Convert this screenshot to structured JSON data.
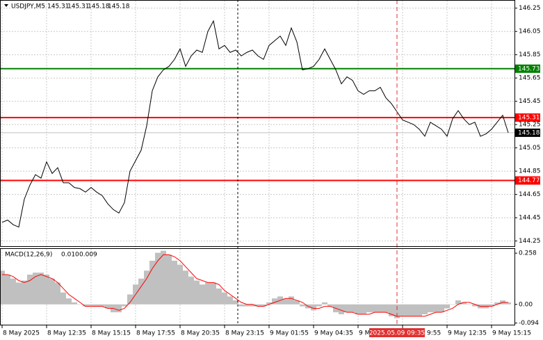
{
  "chart_data": {
    "type": "line",
    "symbol": "USDJPY,M5",
    "ohlc": [
      145.31,
      145.31,
      145.18,
      145.18
    ],
    "color": "#000000",
    "categories": [
      "8 May 2025",
      null,
      null,
      null,
      null,
      null,
      null,
      null,
      "8 May 12:35",
      null,
      null,
      null,
      null,
      null,
      null,
      null,
      "8 May 15:15",
      null,
      null,
      null,
      null,
      null,
      null,
      null,
      "8 May 17:55",
      null,
      null,
      null,
      null,
      null,
      null,
      null,
      "8 May 20:35",
      null,
      null,
      null,
      null,
      null,
      null,
      null,
      "8 May 23:15",
      null,
      null,
      null,
      null,
      null,
      null,
      null,
      "9 May 01:55",
      null,
      null,
      null,
      null,
      null,
      null,
      null,
      "9 May 04:35",
      null,
      null,
      null,
      null,
      null,
      null,
      null,
      "9 M",
      null,
      null,
      null,
      null,
      null,
      null,
      null,
      "9:55",
      null,
      null,
      null,
      null,
      null,
      null,
      null,
      "9 May 12:35",
      null,
      null,
      null,
      null,
      null,
      null,
      null,
      "9 May 15:15",
      null,
      null,
      null
    ],
    "values": [
      144.41,
      144.43,
      144.39,
      144.37,
      144.61,
      144.73,
      144.82,
      144.79,
      144.93,
      144.83,
      144.88,
      144.75,
      144.75,
      144.71,
      144.7,
      144.67,
      144.71,
      144.67,
      144.64,
      144.57,
      144.52,
      144.49,
      144.58,
      144.85,
      144.94,
      145.03,
      145.24,
      145.54,
      145.66,
      145.72,
      145.75,
      145.81,
      145.9,
      145.75,
      145.84,
      145.89,
      145.87,
      146.05,
      146.14,
      145.9,
      145.93,
      145.87,
      145.89,
      145.84,
      145.87,
      145.89,
      145.84,
      145.81,
      145.93,
      145.97,
      146.01,
      145.93,
      146.08,
      145.96,
      145.72,
      145.73,
      145.75,
      145.81,
      145.9,
      145.81,
      145.72,
      145.6,
      145.66,
      145.63,
      145.54,
      145.51,
      145.54,
      145.54,
      145.57,
      145.48,
      145.43,
      145.36,
      145.29,
      145.27,
      145.25,
      145.21,
      145.15,
      145.27,
      145.24,
      145.21,
      145.15,
      145.3,
      145.37,
      145.3,
      145.25,
      145.27,
      145.15,
      145.17,
      145.21,
      145.27,
      145.33,
      145.18
    ],
    "ylim": [
      144.2,
      146.32
    ],
    "yticks": [
      146.25,
      146.05,
      145.85,
      145.65,
      145.45,
      145.25,
      145.05,
      144.85,
      144.65,
      144.45,
      144.25
    ],
    "grid": true,
    "levels": [
      {
        "value": 145.73,
        "color": "#008000"
      },
      {
        "value": 145.31,
        "color": "#ff0000"
      },
      {
        "value": 144.77,
        "color": "#ff0000"
      }
    ],
    "bid": 145.18,
    "cursor_label": "2025.05.09 09:35",
    "macd": {
      "type": "macd",
      "label": "MACD(12,26,9)",
      "label_values": [
        "0.010",
        "0.009"
      ],
      "histogram": {
        "color": "#c0c0c0",
        "values": [
          0.17,
          0.15,
          0.13,
          0.11,
          0.12,
          0.15,
          0.16,
          0.16,
          0.15,
          0.13,
          0.11,
          0.06,
          0.03,
          0.01,
          0,
          -0.01,
          -0.01,
          -0.01,
          -0.01,
          -0.02,
          -0.04,
          -0.04,
          -0.01,
          0.05,
          0.1,
          0.13,
          0.17,
          0.22,
          0.26,
          0.27,
          0.25,
          0.22,
          0.2,
          0.17,
          0.14,
          0.12,
          0.1,
          0.11,
          0.11,
          0.08,
          0.06,
          0.04,
          0.02,
          -0.01,
          -0.01,
          -0.01,
          -0.01,
          -0.01,
          0.01,
          0.03,
          0.04,
          0.03,
          0.04,
          0.02,
          -0.01,
          -0.02,
          -0.03,
          -0.01,
          0.01,
          -0.01,
          -0.04,
          -0.05,
          -0.04,
          -0.04,
          -0.05,
          -0.05,
          -0.04,
          -0.04,
          -0.04,
          -0.04,
          -0.06,
          -0.07,
          -0.06,
          -0.06,
          -0.06,
          -0.06,
          -0.05,
          -0.04,
          -0.04,
          -0.04,
          -0.02,
          0,
          0.02,
          0.01,
          0,
          -0.01,
          -0.02,
          -0.02,
          -0.01,
          0.01,
          0.02,
          0.01
        ]
      },
      "signal": {
        "color": "#ff0000",
        "values": [
          0.15,
          0.15,
          0.14,
          0.12,
          0.11,
          0.12,
          0.14,
          0.15,
          0.14,
          0.13,
          0.11,
          0.08,
          0.05,
          0.03,
          0.01,
          -0.01,
          -0.01,
          -0.01,
          -0.01,
          -0.02,
          -0.02,
          -0.03,
          -0.02,
          0.01,
          0.05,
          0.09,
          0.13,
          0.18,
          0.22,
          0.25,
          0.25,
          0.24,
          0.22,
          0.19,
          0.16,
          0.13,
          0.12,
          0.11,
          0.11,
          0.1,
          0.07,
          0.05,
          0.03,
          0.01,
          0,
          0,
          -0.01,
          -0.01,
          0,
          0.01,
          0.02,
          0.03,
          0.03,
          0.02,
          0.01,
          -0.01,
          -0.02,
          -0.02,
          -0.01,
          -0.01,
          -0.02,
          -0.03,
          -0.04,
          -0.04,
          -0.05,
          -0.05,
          -0.05,
          -0.04,
          -0.04,
          -0.04,
          -0.05,
          -0.06,
          -0.06,
          -0.06,
          -0.06,
          -0.06,
          -0.06,
          -0.05,
          -0.04,
          -0.04,
          -0.03,
          -0.02,
          0,
          0.01,
          0.01,
          0,
          -0.01,
          -0.01,
          -0.01,
          0,
          0.01,
          0.01
        ]
      },
      "ylim": [
        -0.106,
        0.283
      ],
      "yticks": [
        0.258,
        {
          "value": 0,
          "label": "0.00"
        },
        -0.094
      ]
    }
  }
}
